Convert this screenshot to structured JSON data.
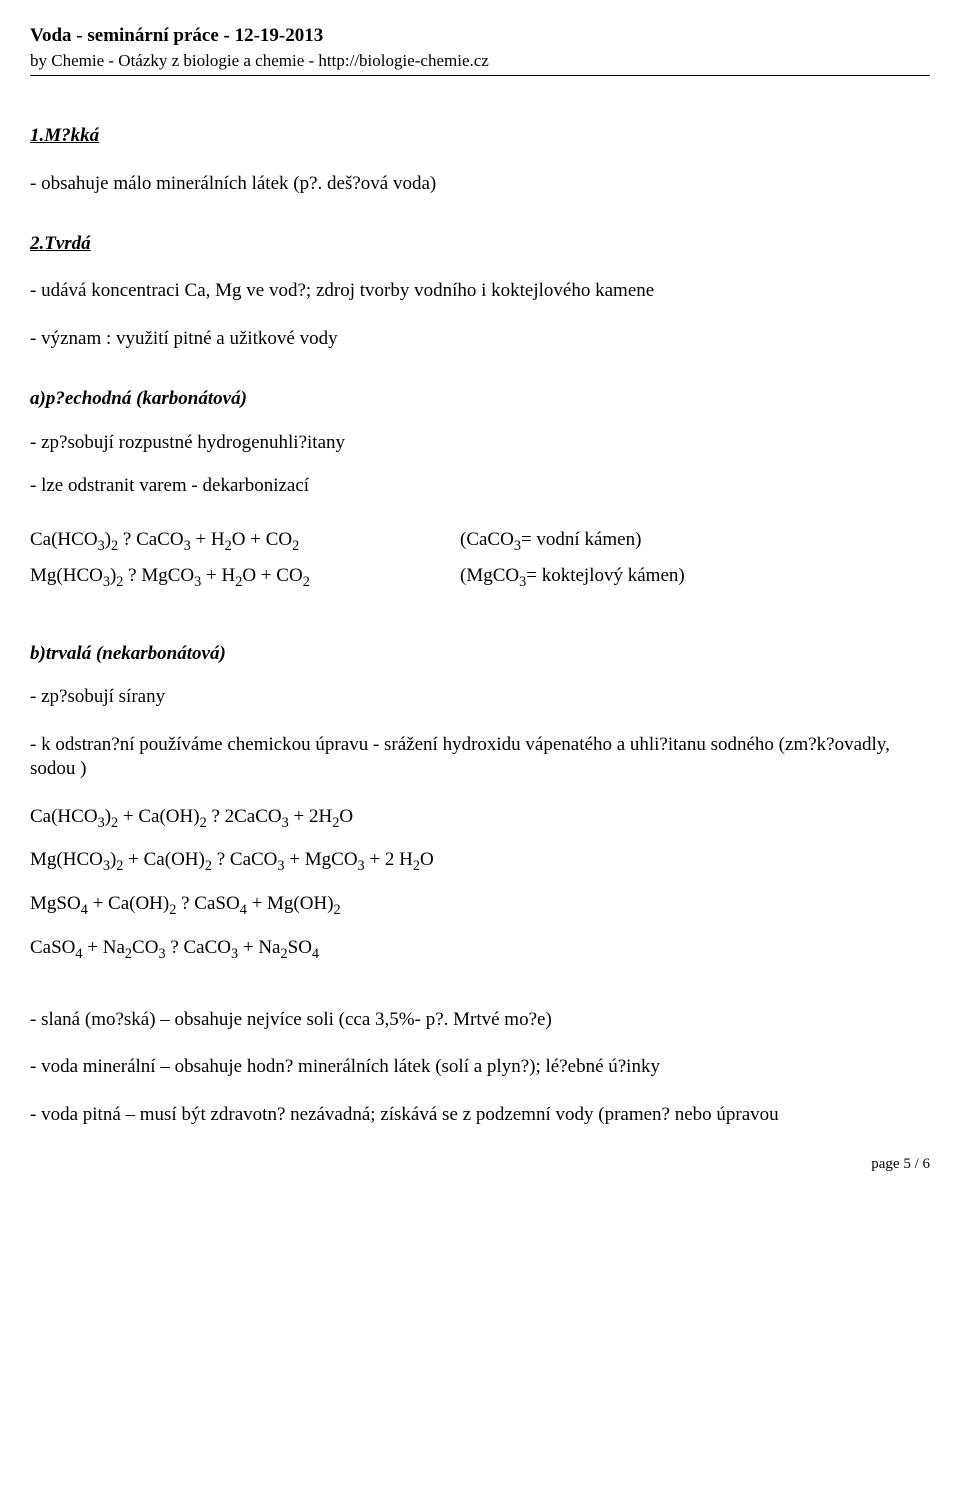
{
  "header": {
    "title": "Voda - seminární práce - 12-19-2013",
    "subtitle": "by Chemie - Otázky z biologie a chemie - http://biologie-chemie.cz"
  },
  "s1": {
    "heading": "1.M?kká",
    "p1": "- obsahuje málo minerálních látek (p?. deš?ová voda)"
  },
  "s2": {
    "heading": "2.Tvrdá",
    "p1": "- udává koncentraci Ca, Mg ve vod?; zdroj tvorby vodního i koktejlového kamene",
    "p2": "- význam : využití pitné a užitkové vody"
  },
  "s3": {
    "heading": "a)p?echodná (karbonátová)",
    "p1": "- zp?sobují rozpustné hydrogenuhli?itany",
    "p2": "- lze odstranit varem - dekarbonizací",
    "eq1_lhs": "Ca(HCO₃)₂ ? CaCO₃ + H₂O + CO₂",
    "eq1_rhs": "(CaCO₃= vodní kámen)",
    "eq2_lhs": "Mg(HCO₃)₂ ? MgCO₃ + H₂O + CO₂",
    "eq2_rhs": "(MgCO₃= koktejlový kámen)"
  },
  "s4": {
    "heading": "b)trvalá (nekarbonátová)",
    "p1": "- zp?sobují sírany",
    "p2": "- k odstran?ní používáme chemickou úpravu - srážení hydroxidu vápenatého a uhli?itanu sodného (zm?k?ovadly, sodou )",
    "eq1": "Ca(HCO₃)₂ + Ca(OH)₂ ? 2CaCO₃ + 2H₂O",
    "eq2": "Mg(HCO₃)₂ + Ca(OH)₂ ? CaCO₃ + MgCO₃ + 2 H₂O",
    "eq3": "MgSO₄ + Ca(OH)₂ ? CaSO₄ + Mg(OH)₂",
    "eq4": "CaSO₄ + Na₂CO₃ ? CaCO₃ + Na₂SO₄"
  },
  "s5": {
    "p1": "- slaná (mo?ská) – obsahuje nejvíce soli (cca 3,5%- p?. Mrtvé mo?e)",
    "p2": "- voda minerální – obsahuje hodn? minerálních látek (solí a plyn?); lé?ebné ú?inky",
    "p3": "- voda pitná – musí být zdravotn? nezávadná; získává se z podzemní vody (pramen? nebo úpravou"
  },
  "footer": {
    "page": "page 5 / 6"
  }
}
